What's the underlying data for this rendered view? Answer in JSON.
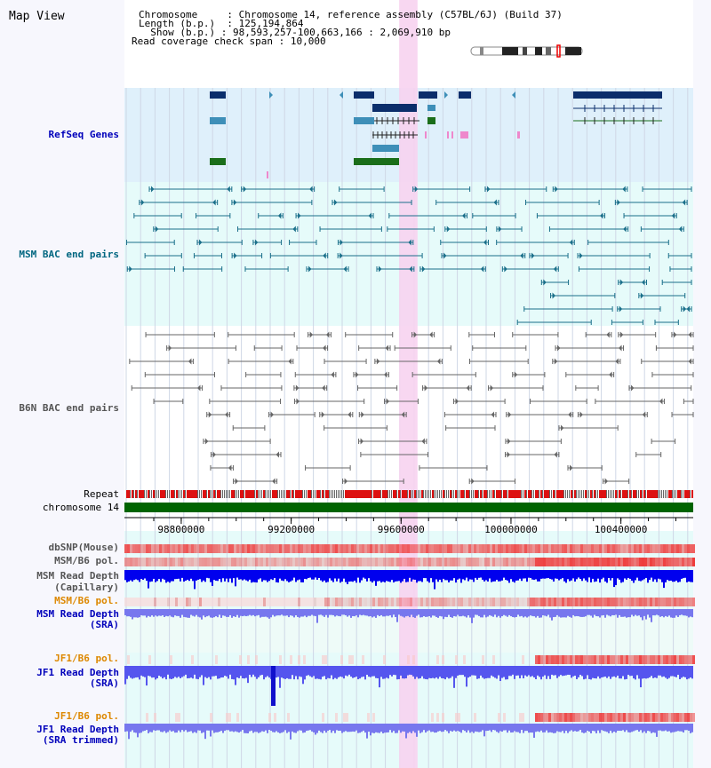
{
  "view_title": "Map View",
  "info": {
    "chromosome_key": "Chromosome",
    "chromosome_value": "Chromosome 14, reference assembly (C57BL/6J) (Build 37)",
    "length_key": "Length (b.p.)",
    "length_value": "125,194,864",
    "show_key": "Show (b.p.)",
    "show_value": "98,593,257-100,663,166 : 2,069,910 bp",
    "coverage_key": "Read coverage check span",
    "coverage_value": "10,000"
  },
  "tracks": {
    "refseq": {
      "label": "RefSeq Genes",
      "color": "#0000bb"
    },
    "msm_bac": {
      "label": "MSM BAC end pairs",
      "color": "#006680"
    },
    "b6n_bac": {
      "label": "B6N BAC end pairs",
      "color": "#555555"
    },
    "repeat": {
      "label": "Repeat",
      "color": "#000000"
    },
    "chromosome": {
      "label": "chromosome 14",
      "color": "#000000"
    },
    "dbsnp": {
      "label": "dbSNP(Mouse)",
      "color": "#555555"
    },
    "msm_b6_pol_1": {
      "label": "MSM/B6 pol.",
      "color": "#555555"
    },
    "msm_depth_cap_1": {
      "label": "MSM Read Depth",
      "color": "#555555"
    },
    "msm_depth_cap_2": {
      "label": "(Capillary)",
      "color": "#555555"
    },
    "msm_b6_pol_2": {
      "label": "MSM/B6 pol.",
      "color": "#dd8800"
    },
    "msm_depth_sra_1": {
      "label": "MSM Read Depth",
      "color": "#0000bb"
    },
    "msm_depth_sra_2": {
      "label": "(SRA)",
      "color": "#0000bb"
    },
    "jf1_b6_pol_1": {
      "label": "JF1/B6 pol.",
      "color": "#dd8800"
    },
    "jf1_depth_sra_1": {
      "label": "JF1 Read Depth",
      "color": "#0000bb"
    },
    "jf1_depth_sra_2": {
      "label": "(SRA)",
      "color": "#0000bb"
    },
    "jf1_b6_pol_2": {
      "label": "JF1/B6 pol.",
      "color": "#dd8800"
    },
    "jf1_depth_trim_1": {
      "label": "JF1 Read Depth",
      "color": "#0000bb"
    },
    "jf1_depth_trim_2": {
      "label": "(SRA trimmed)",
      "color": "#0000bb"
    }
  },
  "axis": {
    "ticks": [
      "98800000",
      "99200000",
      "99600000",
      "100000000",
      "100400000"
    ],
    "range": [
      98593257,
      100663166
    ],
    "highlight_range": [
      99593000,
      99660000
    ]
  },
  "colors": {
    "refseq_bg": "#dff0fb",
    "bac_bg": "#e6fbfa",
    "light_bg": "#eefbf8",
    "highlight": "#f7d3ef",
    "chrom_bar": "#006400",
    "gene_dark": "#0b2e6b",
    "gene_mid": "#3e8fb8",
    "gene_green": "#1a6e1a",
    "msm_line": "#1a6f8a",
    "b6n_line": "#666666",
    "depth_dark": "#0000ee",
    "depth_light": "#7777ee",
    "pol_red": "#ee3333"
  }
}
